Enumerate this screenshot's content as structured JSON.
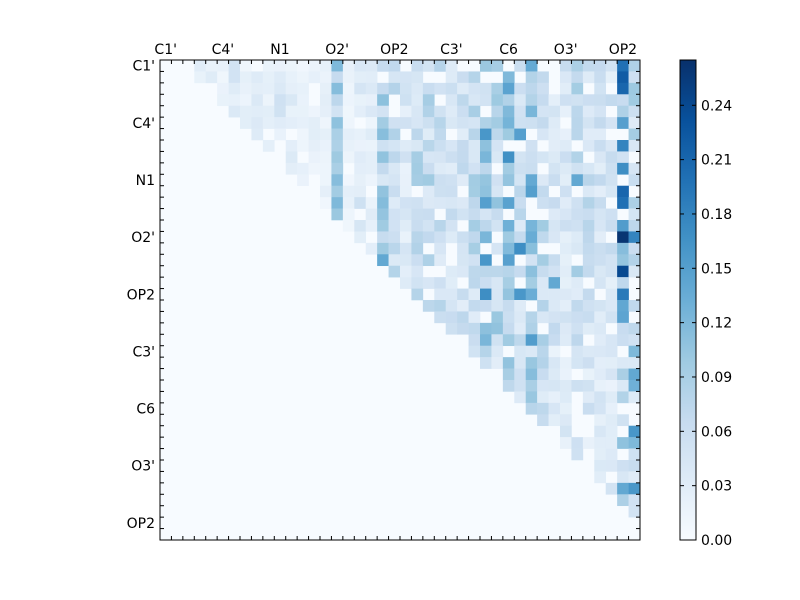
{
  "chart_data": {
    "type": "heatmap",
    "colormap": "Blues",
    "triangle": "upper",
    "size": 42,
    "x_tick_labels": [
      "C1'",
      "C4'",
      "N1",
      "O2'",
      "OP2",
      "C3'",
      "C6",
      "O3'",
      "OP2"
    ],
    "y_tick_labels": [
      "C1'",
      "C4'",
      "N1",
      "O2'",
      "OP2",
      "C3'",
      "C6",
      "O3'",
      "OP2"
    ],
    "colorbar_ticks": [
      "0.00",
      "0.03",
      "0.06",
      "0.09",
      "0.12",
      "0.15",
      "0.18",
      "0.21",
      "0.24"
    ],
    "vmin": 0.0,
    "vmax": 0.265,
    "column_intensity": [
      0.0,
      0.0,
      0.05,
      0.03,
      0.04,
      0.02,
      0.04,
      0.02,
      0.03,
      0.03,
      0.04,
      0.03,
      0.02,
      0.02,
      0.02,
      0.09,
      0.02,
      0.04,
      0.03,
      0.09,
      0.06,
      0.04,
      0.07,
      0.07,
      0.06,
      0.05,
      0.06,
      0.07,
      0.1,
      0.08,
      0.13,
      0.06,
      0.11,
      0.08,
      0.05,
      0.05,
      0.07,
      0.06,
      0.05,
      0.05,
      0.11,
      0.07
    ],
    "highlights": [
      {
        "row": 0,
        "col": 40,
        "value": 0.2
      },
      {
        "row": 0,
        "col": 15,
        "value": 0.12
      },
      {
        "row": 1,
        "col": 40,
        "value": 0.22
      },
      {
        "row": 2,
        "col": 40,
        "value": 0.21
      },
      {
        "row": 2,
        "col": 41,
        "value": 0.1
      },
      {
        "row": 6,
        "col": 28,
        "value": 0.16
      },
      {
        "row": 6,
        "col": 31,
        "value": 0.15
      },
      {
        "row": 7,
        "col": 40,
        "value": 0.18
      },
      {
        "row": 9,
        "col": 40,
        "value": 0.17
      },
      {
        "row": 10,
        "col": 36,
        "value": 0.14
      },
      {
        "row": 11,
        "col": 40,
        "value": 0.21
      },
      {
        "row": 12,
        "col": 28,
        "value": 0.15
      },
      {
        "row": 12,
        "col": 40,
        "value": 0.2
      },
      {
        "row": 15,
        "col": 40,
        "value": 0.26
      },
      {
        "row": 15,
        "col": 41,
        "value": 0.18
      },
      {
        "row": 16,
        "col": 31,
        "value": 0.17
      },
      {
        "row": 17,
        "col": 19,
        "value": 0.14
      },
      {
        "row": 17,
        "col": 28,
        "value": 0.16
      },
      {
        "row": 18,
        "col": 40,
        "value": 0.24
      },
      {
        "row": 19,
        "col": 34,
        "value": 0.14
      },
      {
        "row": 20,
        "col": 28,
        "value": 0.17
      },
      {
        "row": 20,
        "col": 31,
        "value": 0.16
      },
      {
        "row": 20,
        "col": 40,
        "value": 0.19
      },
      {
        "row": 25,
        "col": 41,
        "value": 0.12
      },
      {
        "row": 27,
        "col": 41,
        "value": 0.14
      },
      {
        "row": 28,
        "col": 41,
        "value": 0.13
      },
      {
        "row": 32,
        "col": 41,
        "value": 0.16
      },
      {
        "row": 33,
        "col": 41,
        "value": 0.12
      },
      {
        "row": 37,
        "col": 40,
        "value": 0.14
      },
      {
        "row": 37,
        "col": 41,
        "value": 0.16
      }
    ]
  }
}
